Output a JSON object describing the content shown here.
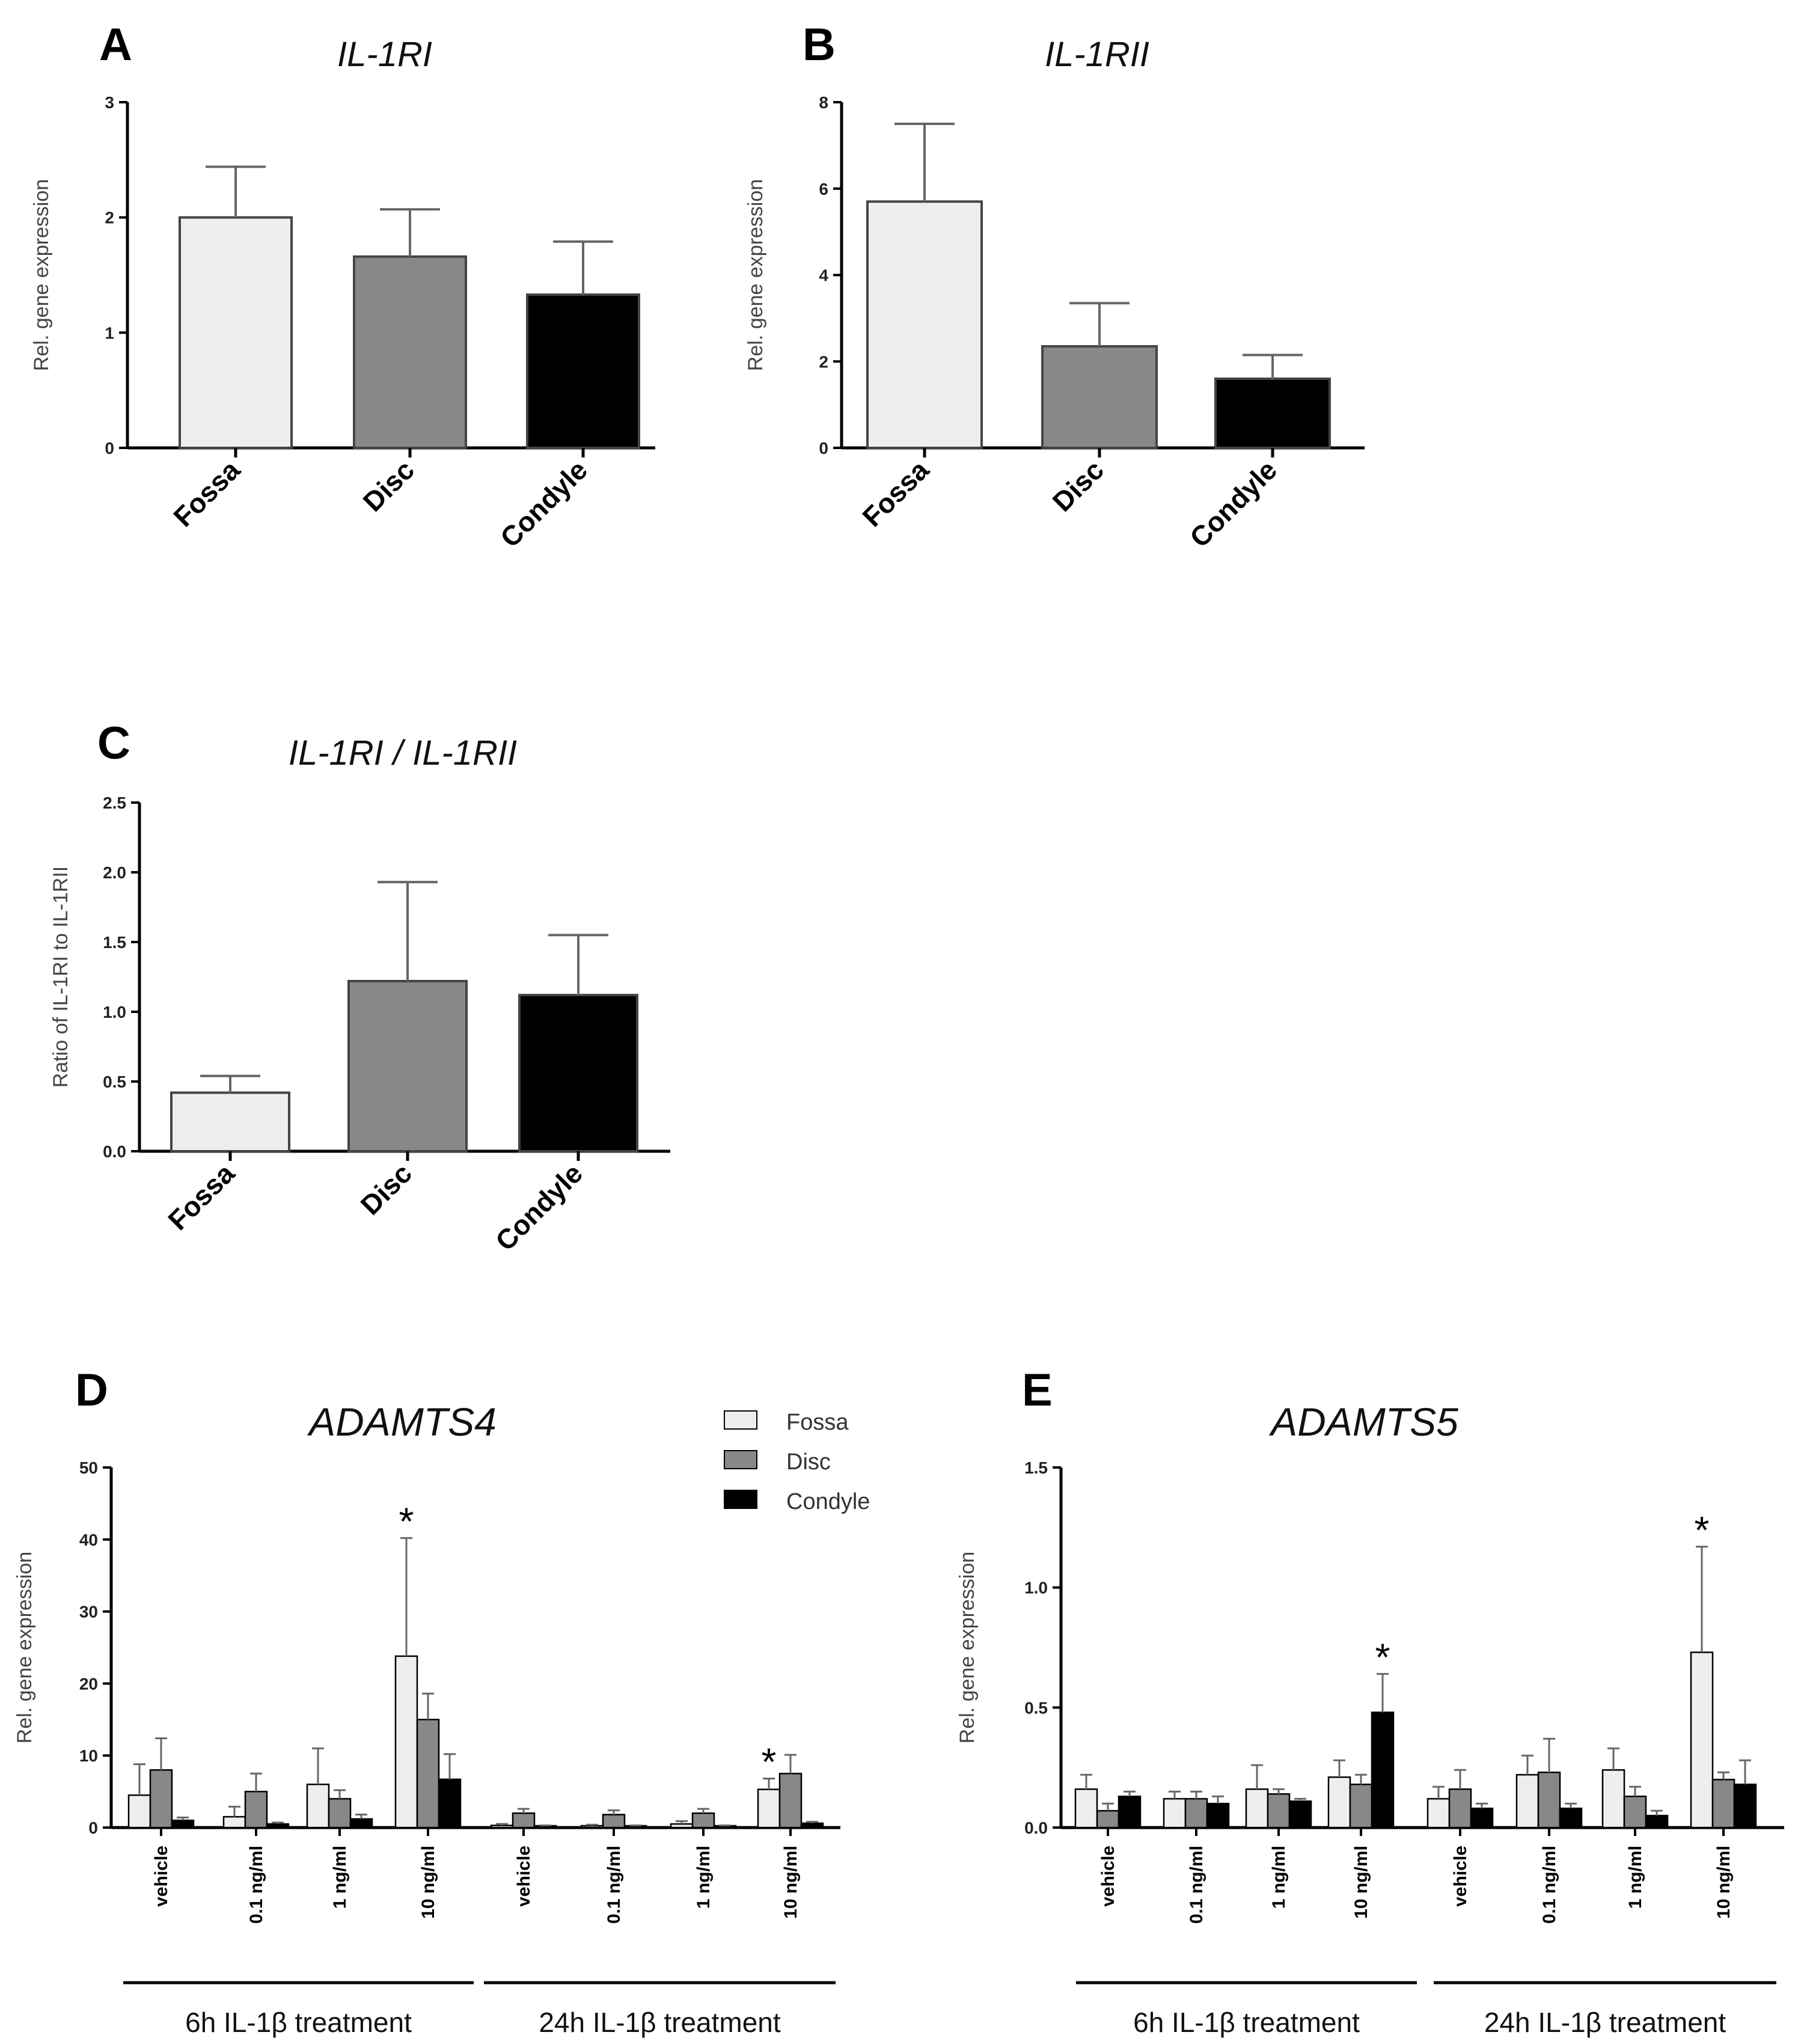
{
  "colors": {
    "fossa": "#eeeeee",
    "disc": "#888888",
    "condyle": "#000000"
  },
  "legend": {
    "entries": [
      "Fossa",
      "Disc",
      "Condyle"
    ]
  },
  "chart_data": [
    {
      "id": "A",
      "type": "bar",
      "letter": "A",
      "title": "IL-1RI",
      "ylabel": "Rel. gene expression",
      "ylim": [
        0,
        3
      ],
      "yticks": [
        0,
        1,
        2,
        3
      ],
      "ytick_labels": [
        "0",
        "1",
        "2",
        "3"
      ],
      "categories": [
        "Fossa",
        "Disc",
        "Condyle"
      ],
      "values": [
        2.0,
        1.66,
        1.33
      ],
      "errors": [
        0.44,
        0.41,
        0.46
      ]
    },
    {
      "id": "B",
      "type": "bar",
      "letter": "B",
      "title": "IL-1RII",
      "ylabel": "Rel. gene expression",
      "ylim": [
        0,
        8
      ],
      "yticks": [
        0,
        2,
        4,
        6,
        8
      ],
      "ytick_labels": [
        "0",
        "2",
        "4",
        "6",
        "8"
      ],
      "categories": [
        "Fossa",
        "Disc",
        "Condyle"
      ],
      "values": [
        5.7,
        2.35,
        1.6
      ],
      "errors": [
        1.8,
        1.0,
        0.55
      ]
    },
    {
      "id": "C",
      "type": "bar",
      "letter": "C",
      "title": "IL-1RI / IL-1RII",
      "ylabel": "Ratio of IL-1RI to IL-1RII",
      "ylim": [
        0,
        2.5
      ],
      "yticks": [
        0,
        0.5,
        1.0,
        1.5,
        2.0,
        2.5
      ],
      "ytick_labels": [
        "0.0",
        "0.5",
        "1.0",
        "1.5",
        "2.0",
        "2.5"
      ],
      "categories": [
        "Fossa",
        "Disc",
        "Condyle"
      ],
      "values": [
        0.42,
        1.22,
        1.12
      ],
      "errors": [
        0.12,
        0.71,
        0.43
      ]
    },
    {
      "id": "D",
      "type": "bar",
      "letter": "D",
      "title": "ADAMTS4",
      "ylabel": "Rel. gene expression",
      "ylim": [
        0,
        50
      ],
      "yticks": [
        0,
        10,
        20,
        30,
        40,
        50
      ],
      "ytick_labels": [
        "0",
        "10",
        "20",
        "30",
        "40",
        "50"
      ],
      "categories": [
        "vehicle",
        "0.1 ng/ml",
        "1 ng/ml",
        "10 ng/ml",
        "vehicle",
        "0.1 ng/ml",
        "1 ng/ml",
        "10 ng/ml"
      ],
      "groups": [
        "6h IL-1β treatment",
        "24h IL-1β treatment"
      ],
      "series": [
        {
          "name": "Fossa",
          "values": [
            4.5,
            1.5,
            6.0,
            23.8,
            0.3,
            0.2,
            0.5,
            5.3
          ],
          "errors": [
            4.3,
            1.4,
            5.0,
            16.4,
            0.2,
            0.2,
            0.4,
            1.5
          ]
        },
        {
          "name": "Disc",
          "values": [
            8.0,
            5.0,
            4.0,
            15.0,
            2.0,
            1.8,
            2.0,
            7.5
          ],
          "errors": [
            4.4,
            2.5,
            1.2,
            3.6,
            0.6,
            0.6,
            0.6,
            2.6
          ]
        },
        {
          "name": "Condyle",
          "values": [
            1.0,
            0.5,
            1.2,
            6.7,
            0.2,
            0.2,
            0.2,
            0.6
          ],
          "errors": [
            0.4,
            0.2,
            0.6,
            3.5,
            0.1,
            0.1,
            0.1,
            0.2
          ]
        }
      ],
      "significance": [
        {
          "text": "*",
          "category_index": 3,
          "series_index": 0
        },
        {
          "text": "*",
          "category_index": 7,
          "series_index": 0
        }
      ]
    },
    {
      "id": "E",
      "type": "bar",
      "letter": "E",
      "title": "ADAMTS5",
      "ylabel": "Rel. gene expression",
      "ylim": [
        0,
        1.5
      ],
      "yticks": [
        0,
        0.5,
        1.0,
        1.5
      ],
      "ytick_labels": [
        "0.0",
        "0.5",
        "1.0",
        "1.5"
      ],
      "categories": [
        "vehicle",
        "0.1 ng/ml",
        "1 ng/ml",
        "10 ng/ml",
        "vehicle",
        "0.1 ng/ml",
        "1 ng/ml",
        "10 ng/ml"
      ],
      "groups": [
        "6h IL-1β treatment",
        "24h IL-1β treatment"
      ],
      "series": [
        {
          "name": "Fossa",
          "values": [
            0.16,
            0.12,
            0.16,
            0.21,
            0.12,
            0.22,
            0.24,
            0.73
          ],
          "errors": [
            0.06,
            0.03,
            0.1,
            0.07,
            0.05,
            0.08,
            0.09,
            0.44
          ]
        },
        {
          "name": "Disc",
          "values": [
            0.07,
            0.12,
            0.14,
            0.18,
            0.16,
            0.23,
            0.13,
            0.2
          ],
          "errors": [
            0.03,
            0.03,
            0.02,
            0.04,
            0.08,
            0.14,
            0.04,
            0.03
          ]
        },
        {
          "name": "Condyle",
          "values": [
            0.13,
            0.1,
            0.11,
            0.48,
            0.08,
            0.08,
            0.05,
            0.18
          ],
          "errors": [
            0.02,
            0.03,
            0.01,
            0.16,
            0.02,
            0.02,
            0.02,
            0.1
          ]
        }
      ],
      "significance": [
        {
          "text": "*",
          "category_index": 3,
          "series_index": 2
        },
        {
          "text": "*",
          "category_index": 7,
          "series_index": 0
        }
      ]
    }
  ]
}
